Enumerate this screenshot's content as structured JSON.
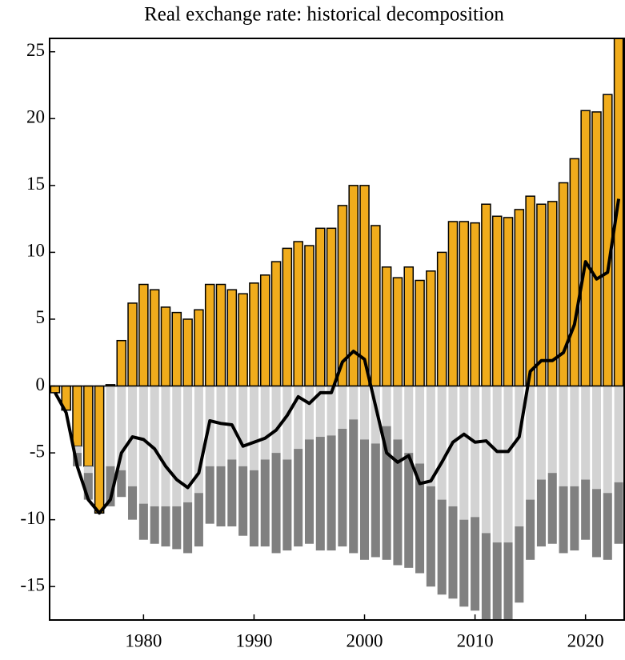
{
  "chart_data": {
    "type": "stacked-bar-line",
    "title": "Real exchange rate: historical decomposition",
    "x": [
      1972,
      1973,
      1974,
      1975,
      1976,
      1977,
      1978,
      1979,
      1980,
      1981,
      1982,
      1983,
      1984,
      1985,
      1986,
      1987,
      1988,
      1989,
      1990,
      1991,
      1992,
      1993,
      1994,
      1995,
      1996,
      1997,
      1998,
      1999,
      2000,
      2001,
      2002,
      2003,
      2004,
      2005,
      2006,
      2007,
      2008,
      2009,
      2010,
      2011,
      2012,
      2013,
      2014,
      2015,
      2016,
      2017,
      2018,
      2019,
      2020,
      2021,
      2022,
      2023
    ],
    "series": [
      {
        "color": "#f0ac1c",
        "outline": "#000000",
        "values": [
          -0.5,
          -1.8,
          -4.5,
          -6,
          -9.5,
          0.1,
          3.4,
          6.2,
          7.6,
          7.2,
          5.9,
          5.5,
          5.0,
          5.7,
          7.6,
          7.6,
          7.2,
          6.9,
          7.7,
          8.3,
          9.3,
          10.3,
          10.8,
          10.5,
          11.8,
          11.8,
          13.5,
          15.0,
          15.0,
          12.0,
          8.9,
          8.1,
          8.9,
          7.9,
          8.6,
          10.0,
          12.3,
          12.3,
          12.2,
          13.6,
          12.7,
          12.6,
          13.2,
          14.2,
          13.6,
          13.8,
          15.2,
          17.0,
          20.6,
          20.5,
          21.8,
          27
        ]
      },
      {
        "color": "#d3d3d3",
        "values": [
          0,
          0,
          -0.5,
          -0.5,
          0,
          -6,
          -6.3,
          -7.5,
          -8.8,
          -9,
          -9,
          -9,
          -8.7,
          -8,
          -6,
          -6,
          -5.5,
          -6,
          -6.3,
          -5.5,
          -5,
          -5.5,
          -4.7,
          -4,
          -3.8,
          -3.7,
          -3.2,
          -2.5,
          -4,
          -4.3,
          -3,
          -4,
          -5,
          -5.8,
          -7.5,
          -8.5,
          -9,
          -10,
          -9.8,
          -11,
          -11.7,
          -11.7,
          -10.5,
          -8.5,
          -7,
          -6.5,
          -7.5,
          -7.5,
          -7,
          -7.7,
          -8,
          -7.2
        ]
      },
      {
        "color": "#808080",
        "values": [
          0,
          0,
          -1,
          -2,
          0,
          -3,
          -2,
          -2.5,
          -2.7,
          -2.8,
          -3,
          -3.2,
          -3.8,
          -4,
          -4.3,
          -4.5,
          -5,
          -5.2,
          -5.7,
          -6.5,
          -7.5,
          -6.8,
          -7.3,
          -7.8,
          -8.5,
          -8.6,
          -8.8,
          -10,
          -9,
          -8.5,
          -10,
          -9.4,
          -8.6,
          -8.2,
          -7.5,
          -7.1,
          -6.9,
          -6.5,
          -7,
          -6.8,
          -6.1,
          -6.1,
          -5.7,
          -4.5,
          -5,
          -5.3,
          -5,
          -4.8,
          -4.5,
          -5.1,
          -5,
          -4.6
        ]
      }
    ],
    "line": {
      "color": "#000000",
      "values": [
        -0.5,
        -2,
        -6,
        -8.5,
        -9.5,
        -8.5,
        -5,
        -3.8,
        -4,
        -4.7,
        -6,
        -7,
        -7.6,
        -6.5,
        -2.6,
        -2.8,
        -2.9,
        -4.5,
        -4.2,
        -3.9,
        -3.3,
        -2.2,
        -0.8,
        -1.3,
        -0.5,
        -0.5,
        1.8,
        2.6,
        2,
        -1.5,
        -5,
        -5.7,
        -5.2,
        -7.3,
        -7.1,
        -5.7,
        -4.2,
        -3.6,
        -4.2,
        -4.1,
        -4.9,
        -4.9,
        -3.8,
        1.1,
        1.9,
        1.9,
        2.5,
        4.6,
        9.3,
        8,
        8.5,
        14
      ]
    },
    "xlim": [
      1971.5,
      2023.5
    ],
    "xticks": [
      1980,
      1990,
      2000,
      2010,
      2020
    ],
    "ylim": [
      -17.5,
      26
    ],
    "yticks": [
      25,
      20,
      15,
      10,
      5,
      0,
      -5,
      -10,
      -15
    ]
  }
}
